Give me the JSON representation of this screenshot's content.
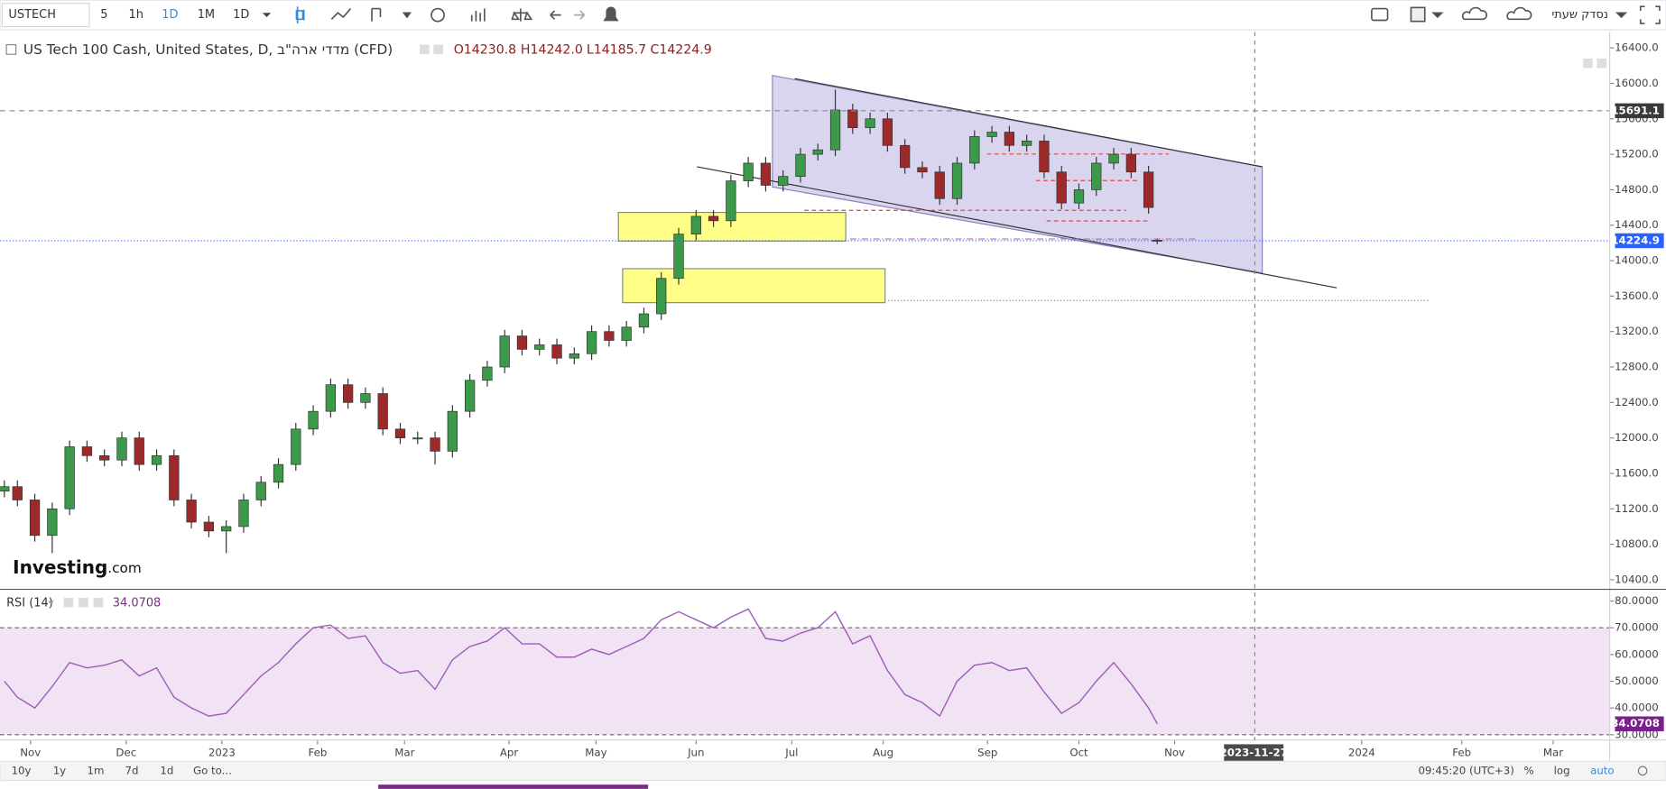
{
  "ui": {
    "symbol": "USTECH",
    "intervals": [
      "5",
      "1h",
      "1D",
      "1M",
      "1D"
    ],
    "list_name": "נסדק שעתי",
    "ranges": [
      "10y",
      "1y",
      "1m",
      "7d",
      "1d"
    ],
    "goto": "Go to...",
    "clock": "09:45:20 (UTC+3)",
    "percent": "%",
    "log": "log",
    "auto": "auto",
    "crosshair_label": "2023-11-27",
    "logo": {
      "name": "Investing",
      "suffix": ".com"
    }
  },
  "chart_data": [
    {
      "type": "candlestick",
      "title": "US Tech 100 Cash, United States, D, מדדי ארה\"ב (CFD)",
      "value_labels": [
        "O14230.8",
        "H14242.0",
        "L14185.7",
        "C14224.9"
      ],
      "up_color": "#3a9a4a",
      "down_color": "#9c2a2a",
      "grid": false,
      "x": [
        1,
        4,
        8,
        12,
        16,
        20,
        24,
        28,
        32,
        36,
        40,
        44,
        48,
        52,
        56,
        60,
        64,
        68,
        72,
        76,
        80,
        84,
        88,
        92,
        96,
        100,
        104,
        108,
        112,
        116,
        120,
        124,
        128,
        132,
        136,
        140,
        144,
        148,
        152,
        156,
        160,
        164,
        168,
        172,
        176,
        180,
        184,
        188,
        192,
        196,
        200,
        204,
        208,
        212,
        216,
        220,
        224,
        228,
        232,
        236,
        240,
        244,
        248,
        252,
        256,
        260,
        264,
        266
      ],
      "open": [
        11400,
        11450,
        11300,
        10900,
        11200,
        11900,
        11800,
        11750,
        12000,
        11700,
        11800,
        11300,
        11050,
        10950,
        11000,
        11300,
        11500,
        11700,
        12100,
        12300,
        12600,
        12400,
        12500,
        12100,
        12000,
        12000,
        11850,
        12300,
        12650,
        12800,
        13150,
        13000,
        13050,
        12900,
        12950,
        13200,
        13100,
        13250,
        13400,
        13800,
        14300,
        14500,
        14450,
        14900,
        15100,
        14850,
        14950,
        15200,
        15250,
        15700,
        15500,
        15600,
        15300,
        15050,
        15000,
        14700,
        15100,
        15400,
        15450,
        15300,
        15350,
        15000,
        14650,
        14800,
        15100,
        15200,
        15000,
        14230.8
      ],
      "high": [
        11520,
        11520,
        11370,
        11270,
        11970,
        11970,
        11870,
        12070,
        12070,
        11870,
        11870,
        11370,
        11120,
        11070,
        11370,
        11570,
        11770,
        12170,
        12370,
        12670,
        12670,
        12570,
        12570,
        12170,
        12070,
        12070,
        12370,
        12720,
        12870,
        13220,
        13220,
        13120,
        13120,
        13020,
        13270,
        13270,
        13320,
        13470,
        13870,
        14370,
        14570,
        14570,
        14970,
        15170,
        15170,
        15020,
        15270,
        15320,
        15930,
        15770,
        15670,
        15670,
        15370,
        15120,
        15070,
        15170,
        15470,
        15520,
        15520,
        15420,
        15420,
        15070,
        14870,
        15170,
        15270,
        15270,
        15070,
        14242.0
      ],
      "low": [
        11330,
        11230,
        10830,
        10700,
        11130,
        11730,
        11680,
        11680,
        11630,
        11630,
        11230,
        10980,
        10880,
        10700,
        10930,
        11230,
        11430,
        11630,
        12030,
        12230,
        12330,
        12330,
        12030,
        11930,
        11930,
        11700,
        11780,
        12230,
        12580,
        12730,
        12930,
        12930,
        12830,
        12830,
        12880,
        13030,
        13030,
        13180,
        13330,
        13730,
        14230,
        14380,
        14380,
        14830,
        14780,
        14780,
        14880,
        15130,
        15180,
        15430,
        15430,
        15230,
        14980,
        14930,
        14630,
        14630,
        15030,
        15330,
        15230,
        15230,
        14930,
        14580,
        14580,
        14730,
        15030,
        14930,
        14530,
        14185.7
      ],
      "close": [
        11450,
        11300,
        10900,
        11200,
        11900,
        11800,
        11750,
        12000,
        11700,
        11800,
        11300,
        11050,
        10950,
        11000,
        11300,
        11500,
        11700,
        12100,
        12300,
        12600,
        12400,
        12500,
        12100,
        12000,
        12000,
        11850,
        12300,
        12650,
        12800,
        13150,
        13000,
        13050,
        12900,
        12950,
        13200,
        13100,
        13250,
        13400,
        13800,
        14300,
        14500,
        14450,
        14900,
        15100,
        14850,
        14950,
        15200,
        15250,
        15700,
        15500,
        15600,
        15300,
        15050,
        15000,
        14700,
        15100,
        15400,
        15450,
        15300,
        15350,
        15000,
        14650,
        14800,
        15100,
        15200,
        15000,
        14600,
        14224.9
      ],
      "xlim": [
        0,
        370
      ],
      "xticks": [
        {
          "value": 7,
          "label": "Nov"
        },
        {
          "value": 29,
          "label": "Dec"
        },
        {
          "value": 51,
          "label": "2023"
        },
        {
          "value": 73,
          "label": "Feb"
        },
        {
          "value": 93,
          "label": "Mar"
        },
        {
          "value": 117,
          "label": "Apr"
        },
        {
          "value": 137,
          "label": "May"
        },
        {
          "value": 160,
          "label": "Jun"
        },
        {
          "value": 182,
          "label": "Jul"
        },
        {
          "value": 203,
          "label": "Aug"
        },
        {
          "value": 227,
          "label": "Sep"
        },
        {
          "value": 248,
          "label": "Oct"
        },
        {
          "value": 270,
          "label": "Nov"
        },
        {
          "value": 313,
          "label": "2024"
        },
        {
          "value": 336,
          "label": "Feb"
        },
        {
          "value": 357,
          "label": "Mar"
        }
      ],
      "ylim": [
        10316,
        16556
      ],
      "yticks": [
        {
          "value": 10400,
          "label": "10400.0"
        },
        {
          "value": 10800,
          "label": "10800.0"
        },
        {
          "value": 11200,
          "label": "11200.0"
        },
        {
          "value": 11600,
          "label": "11600.0"
        },
        {
          "value": 12000,
          "label": "12000.0"
        },
        {
          "value": 12400,
          "label": "12400.0"
        },
        {
          "value": 12800,
          "label": "12800.0"
        },
        {
          "value": 13200,
          "label": "13200.0"
        },
        {
          "value": 13600,
          "label": "13600.0"
        },
        {
          "value": 14000,
          "label": "14000.0"
        },
        {
          "value": 14400,
          "label": "14400.0"
        },
        {
          "value": 14800,
          "label": "14800.0"
        },
        {
          "value": 15200,
          "label": "15200.0"
        },
        {
          "value": 15600,
          "label": "15600.0"
        },
        {
          "value": 16000,
          "label": "16000.0"
        },
        {
          "value": 16400,
          "label": "16400.0"
        }
      ],
      "price_lines": [
        {
          "value": 15691.1,
          "color": "#888888",
          "style": "dashed"
        },
        {
          "value": 14224.9,
          "color": "#2962ff",
          "style": "dotted"
        }
      ]
    },
    {
      "type": "line",
      "name": "RSI (14)",
      "color": "#a05cb8",
      "band_color": "#f1e3f3",
      "x": [
        1,
        4,
        8,
        12,
        16,
        20,
        24,
        28,
        32,
        36,
        40,
        44,
        48,
        52,
        56,
        60,
        64,
        68,
        72,
        76,
        80,
        84,
        88,
        92,
        96,
        100,
        104,
        108,
        112,
        116,
        120,
        124,
        128,
        132,
        136,
        140,
        144,
        148,
        152,
        156,
        160,
        164,
        168,
        172,
        176,
        180,
        184,
        188,
        192,
        196,
        200,
        204,
        208,
        212,
        216,
        220,
        224,
        228,
        232,
        236,
        240,
        244,
        248,
        252,
        256,
        260,
        264,
        266
      ],
      "values": [
        50,
        44,
        40,
        48,
        57,
        55,
        56,
        58,
        52,
        55,
        44,
        40,
        37,
        38,
        45,
        52,
        57,
        64,
        70,
        71,
        66,
        67,
        57,
        53,
        54,
        47,
        58,
        63,
        65,
        70,
        64,
        64,
        59,
        59,
        62,
        60,
        63,
        66,
        73,
        76,
        73,
        70,
        74,
        77,
        66,
        65,
        68,
        70,
        76,
        64,
        67,
        54,
        45,
        42,
        37,
        50,
        56,
        57,
        54,
        55,
        46,
        38,
        42,
        50,
        57,
        49,
        40,
        34.0708
      ],
      "bands": [
        30,
        70
      ],
      "ylim": [
        28.8,
        83.6
      ],
      "yticks": [
        {
          "value": 30,
          "label": "30.0000"
        },
        {
          "value": 40,
          "label": "40.0000"
        },
        {
          "value": 50,
          "label": "50.0000"
        },
        {
          "value": 60,
          "label": "60.0000"
        },
        {
          "value": 70,
          "label": "70.0000"
        },
        {
          "value": 80,
          "label": "80.0000"
        }
      ]
    }
  ]
}
